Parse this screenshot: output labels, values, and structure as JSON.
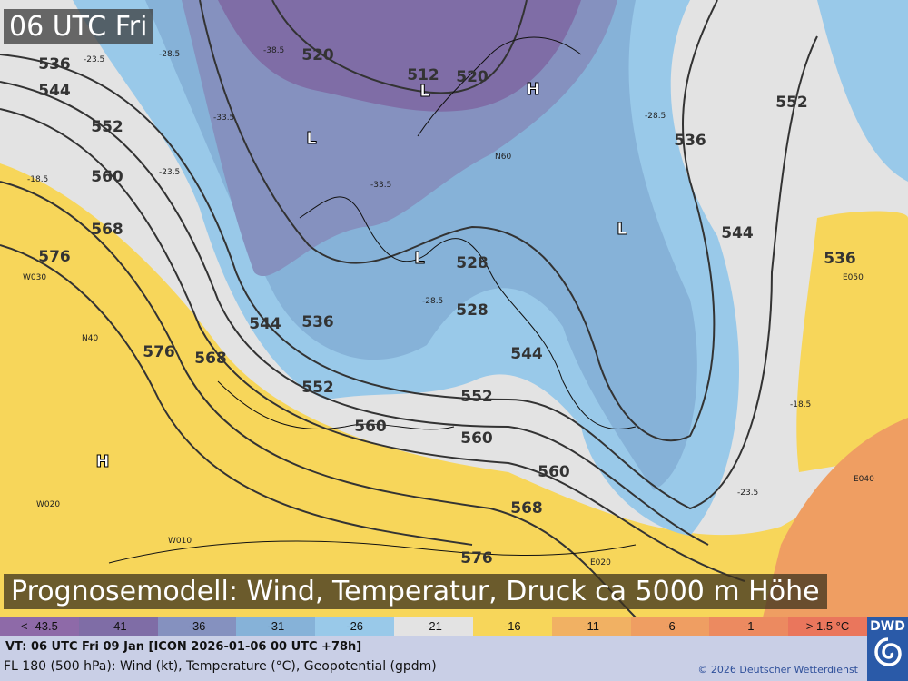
{
  "time_label": "06 UTC Fri",
  "title": "Prognosemodell: Wind, Temperatur, Druck ca 5000 m Höhe",
  "legend": [
    {
      "label": "< -43.5",
      "color": "#8e6aa8"
    },
    {
      "label": "-41",
      "color": "#7f6da6"
    },
    {
      "label": "-36",
      "color": "#8591bf"
    },
    {
      "label": "-31",
      "color": "#86b2d8"
    },
    {
      "label": "-26",
      "color": "#99c9e9"
    },
    {
      "label": "-21",
      "color": "#e3e3e3"
    },
    {
      "label": "-16",
      "color": "#f7d65a"
    },
    {
      "label": "-11",
      "color": "#f1b163"
    },
    {
      "label": "-6",
      "color": "#ef9e62"
    },
    {
      "label": "-1",
      "color": "#ec8a60"
    },
    {
      "label": "> 1.5 °C",
      "color": "#ea765c"
    }
  ],
  "footer": {
    "valid_time": "VT: 06 UTC Fri  09 Jan [ICON 2026-01-06 00 UTC +78h]",
    "description": "FL 180 (500 hPa): Wind (kt), Temperature (°C), Geopotential (gpdm)",
    "copyright": "© 2026 Deutscher Wetterdienst",
    "logo": "DWD"
  },
  "map": {
    "contour_labels": [
      "536",
      "544",
      "552",
      "560",
      "568",
      "576",
      "576",
      "568",
      "544",
      "536",
      "552",
      "560",
      "560",
      "520",
      "512",
      "520",
      "528",
      "528",
      "536",
      "544",
      "552",
      "536",
      "544",
      "552",
      "560",
      "568",
      "576"
    ],
    "pressure_centers": [
      "L",
      "L",
      "L",
      "L",
      "H",
      "H"
    ],
    "temperature_labels": [
      "-23.5",
      "-28.5",
      "-33.5",
      "-38.5",
      "-18.5",
      "-23.5",
      "-28.5",
      "-33.5",
      "-28.5",
      "-23.5",
      "-18.5"
    ],
    "grid_labels": [
      "N60",
      "N40",
      "W030",
      "W020",
      "W010",
      "E020",
      "E040",
      "E050"
    ]
  }
}
